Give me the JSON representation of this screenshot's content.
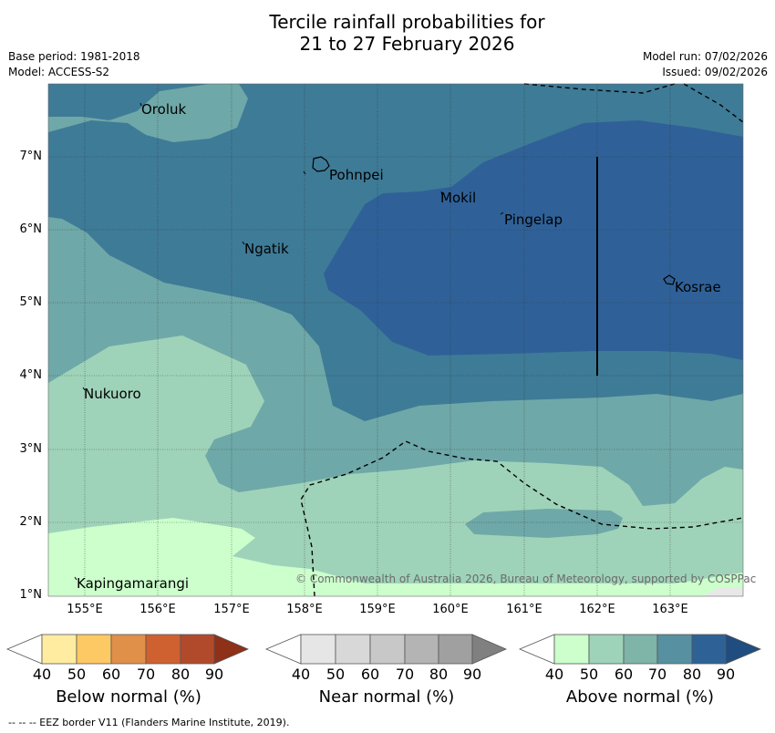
{
  "header": {
    "title_line1": "Tercile rainfall probabilities for",
    "title_line2": "21 to 27 February 2026",
    "base_period": "Base period: 1981-2018",
    "model": "Model: ACCESS-S2",
    "model_run": "Model run: 07/02/2026",
    "issued": "Issued: 09/02/2026"
  },
  "map": {
    "lat_ticks": [
      "7°N",
      "6°N",
      "5°N",
      "4°N",
      "3°N",
      "2°N",
      "1°N"
    ],
    "lon_ticks": [
      "155°E",
      "156°E",
      "157°E",
      "158°E",
      "159°E",
      "160°E",
      "161°E",
      "162°E",
      "163°E"
    ],
    "places": [
      {
        "name": "Oroluk"
      },
      {
        "name": "Pohnpei"
      },
      {
        "name": "Mokil"
      },
      {
        "name": "Pingelap"
      },
      {
        "name": "Ngatik"
      },
      {
        "name": "Kosrae"
      },
      {
        "name": "Nukuoro"
      },
      {
        "name": "Kapingamarangi"
      }
    ],
    "copyright": "© Commonwealth of Australia 2026, Bureau of Meteorology, supported by COSPPac"
  },
  "legend": {
    "below": {
      "label": "Below normal (%)",
      "ticks": [
        "40",
        "50",
        "60",
        "70",
        "80",
        "90"
      ],
      "colors": [
        "#ffffff",
        "#ffeca0",
        "#fdc964",
        "#e09048",
        "#cf6130",
        "#b14a2a",
        "#8f3018"
      ]
    },
    "near": {
      "label": "Near normal (%)",
      "ticks": [
        "40",
        "50",
        "60",
        "70",
        "80",
        "90"
      ],
      "colors": [
        "#ffffff",
        "#e6e6e6",
        "#d8d8d8",
        "#c8c8c8",
        "#b4b4b4",
        "#a0a0a0",
        "#808080"
      ]
    },
    "above": {
      "label": "Above normal (%)",
      "ticks": [
        "40",
        "50",
        "60",
        "70",
        "80",
        "90"
      ],
      "colors": [
        "#ffffff",
        "#ccffcc",
        "#9fd3b9",
        "#7fb4a8",
        "#5790a0",
        "#2e6296",
        "#1f4d80"
      ]
    }
  },
  "footer": "--  --  -- EEZ border V11 (Flanders Marine Institute, 2019)."
}
